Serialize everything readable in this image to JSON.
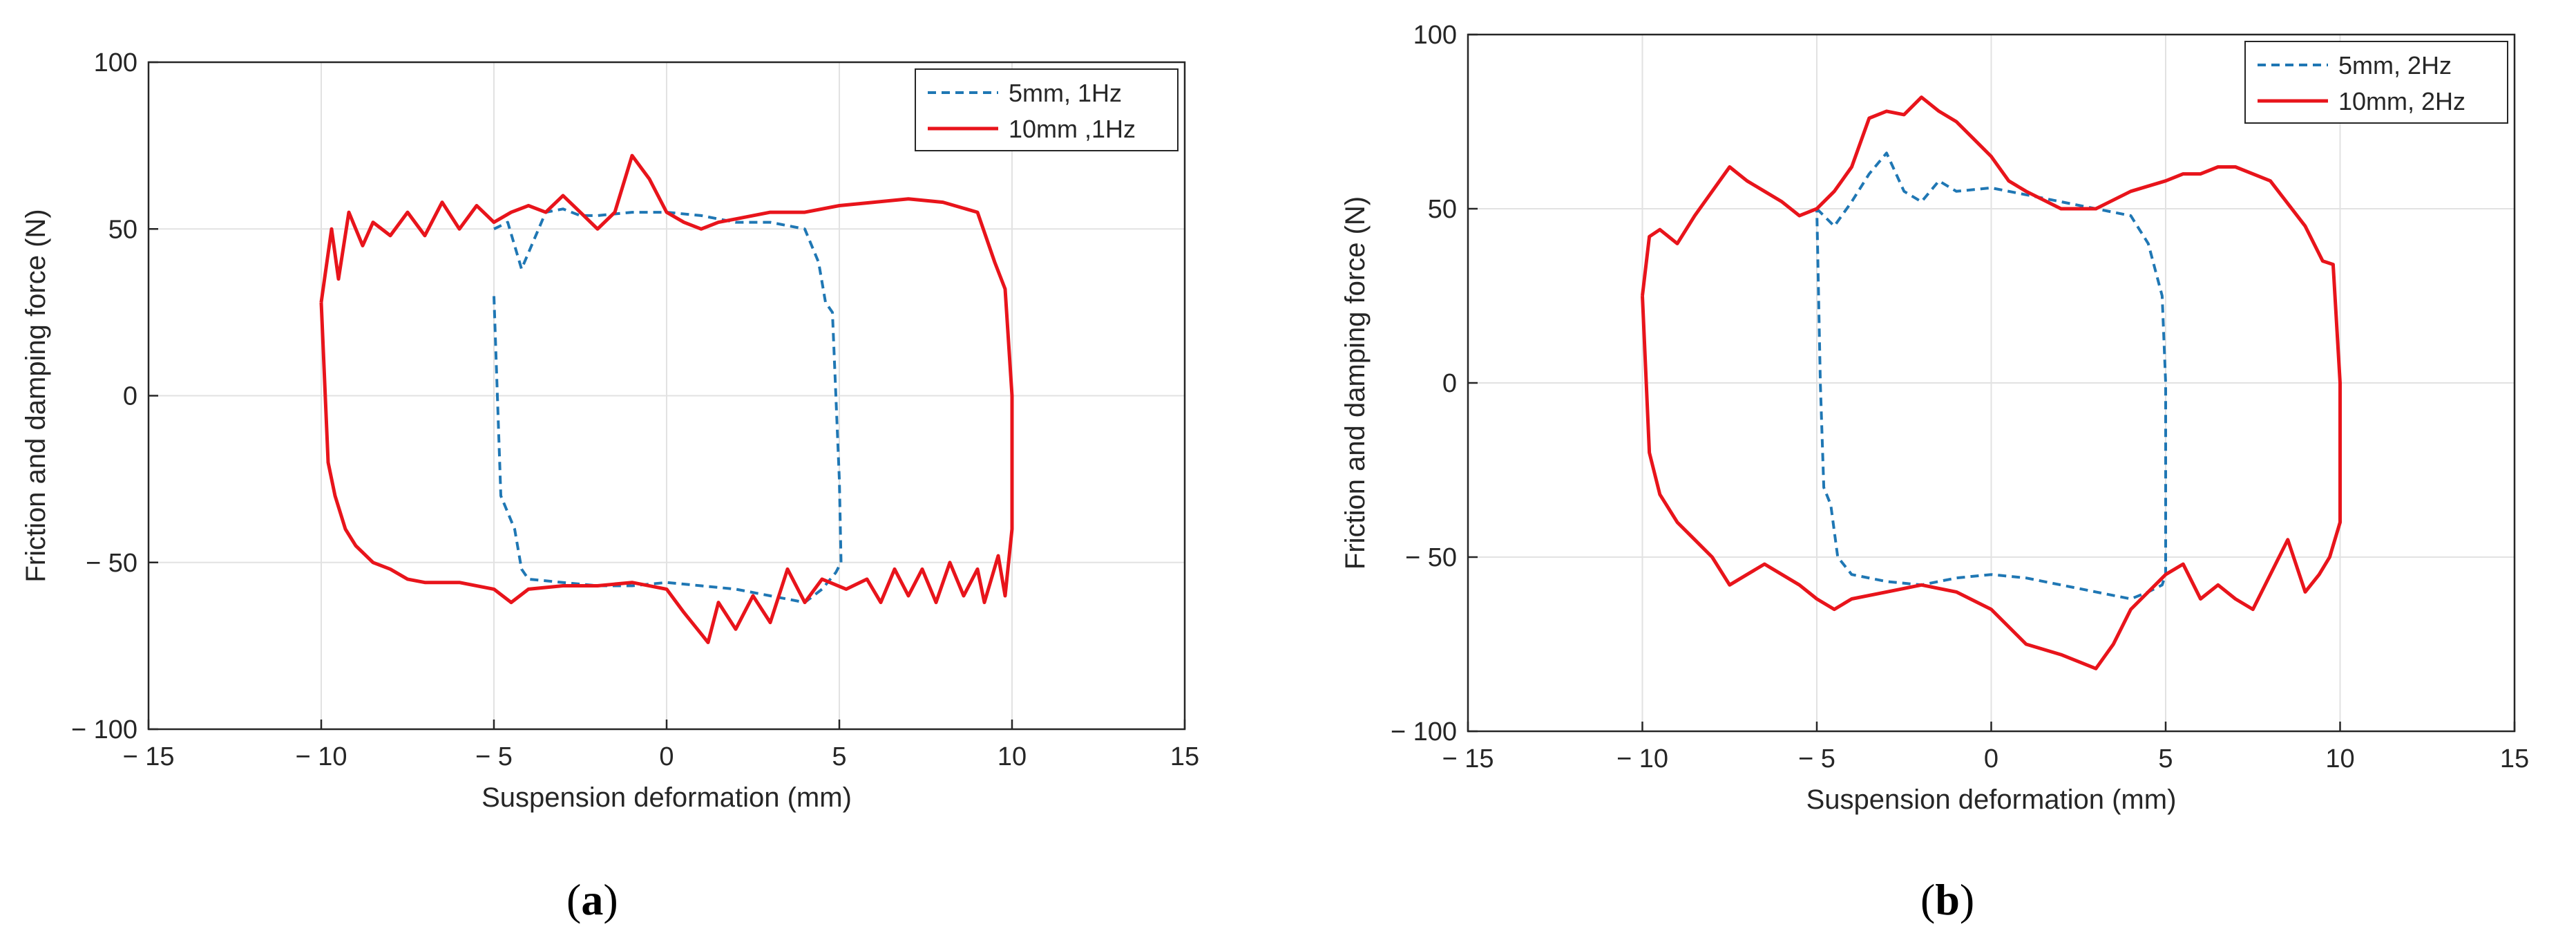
{
  "chart_data": [
    {
      "type": "line",
      "panel": "a",
      "caption": "(a)",
      "xlabel": "Suspension deformation (mm)",
      "ylabel": "Friction and damping force (N)",
      "xlim": [
        -15,
        15
      ],
      "ylim": [
        -100,
        100
      ],
      "xticks": [
        -15,
        -10,
        -5,
        0,
        5,
        10,
        15
      ],
      "yticks": [
        -100,
        -50,
        0,
        50,
        100
      ],
      "xtick_labels": [
        "− 15",
        "− 10",
        "− 5",
        "0",
        "5",
        "10",
        "15"
      ],
      "ytick_labels": [
        "− 100",
        "− 50",
        "0",
        "50",
        "100"
      ],
      "grid": true,
      "legend_position": "top-right",
      "series": [
        {
          "name": "5mm, 1Hz",
          "color": "#1f77b4",
          "style": "dashed",
          "x": [
            -5.0,
            -4.6,
            -4.2,
            -3.5,
            -3.0,
            -2.5,
            -2.0,
            -1.0,
            0.0,
            1.0,
            2.0,
            3.0,
            4.0,
            4.4,
            4.6,
            4.8,
            4.9,
            5.0,
            5.05,
            4.9,
            4.5,
            4.0,
            3.0,
            2.0,
            1.0,
            0.0,
            -1.0,
            -2.0,
            -3.0,
            -4.0,
            -4.2,
            -4.4,
            -4.6,
            -4.8,
            -4.9,
            -5.0
          ],
          "y": [
            50,
            52,
            38,
            55,
            56,
            54,
            54,
            55,
            55,
            54,
            52,
            52,
            50,
            40,
            28,
            25,
            0,
            -25,
            -50,
            -53,
            -58,
            -62,
            -60,
            -58,
            -57,
            -56,
            -57,
            -57,
            -56,
            -55,
            -52,
            -40,
            -35,
            -30,
            0,
            30
          ]
        },
        {
          "name": "10mm ,1Hz",
          "color": "#e8141b",
          "style": "solid",
          "x": [
            -10.0,
            -9.7,
            -9.5,
            -9.2,
            -8.8,
            -8.5,
            -8.0,
            -7.5,
            -7.0,
            -6.5,
            -6.0,
            -5.5,
            -5.0,
            -4.5,
            -4.0,
            -3.5,
            -3.0,
            -2.5,
            -2.0,
            -1.5,
            -1.0,
            -0.5,
            0.0,
            0.5,
            1.0,
            1.5,
            2.0,
            3.0,
            4.0,
            5.0,
            6.0,
            7.0,
            8.0,
            9.0,
            9.5,
            9.8,
            10.0,
            10.0,
            9.8,
            9.6,
            9.2,
            9.0,
            8.6,
            8.2,
            7.8,
            7.4,
            7.0,
            6.6,
            6.2,
            5.8,
            5.2,
            4.5,
            4.0,
            3.5,
            3.0,
            2.5,
            2.0,
            1.5,
            1.2,
            0.5,
            0.0,
            -1.0,
            -2.0,
            -3.0,
            -4.0,
            -4.5,
            -5.0,
            -6.0,
            -7.0,
            -7.5,
            -8.0,
            -8.5,
            -9.0,
            -9.3,
            -9.6,
            -9.8,
            -10.0
          ],
          "y": [
            28,
            50,
            35,
            55,
            45,
            52,
            48,
            55,
            48,
            58,
            50,
            57,
            52,
            55,
            57,
            55,
            60,
            55,
            50,
            55,
            72,
            65,
            55,
            52,
            50,
            52,
            53,
            55,
            55,
            57,
            58,
            59,
            58,
            55,
            40,
            32,
            0,
            -40,
            -60,
            -48,
            -62,
            -52,
            -60,
            -50,
            -62,
            -52,
            -60,
            -52,
            -62,
            -55,
            -58,
            -55,
            -62,
            -52,
            -68,
            -60,
            -70,
            -62,
            -74,
            -65,
            -58,
            -56,
            -57,
            -57,
            -58,
            -62,
            -58,
            -56,
            -56,
            -55,
            -52,
            -50,
            -45,
            -40,
            -30,
            -20,
            28
          ]
        }
      ]
    },
    {
      "type": "line",
      "panel": "b",
      "caption": "(b)",
      "xlabel": "Suspension deformation (mm)",
      "ylabel": "Friction and damping force (N)",
      "xlim": [
        -15,
        15
      ],
      "ylim": [
        -100,
        100
      ],
      "xticks": [
        -15,
        -10,
        -5,
        0,
        5,
        10,
        15
      ],
      "yticks": [
        -100,
        -50,
        0,
        50,
        100
      ],
      "xtick_labels": [
        "− 15",
        "− 10",
        "− 5",
        "0",
        "5",
        "10",
        "15"
      ],
      "ytick_labels": [
        "− 100",
        "− 50",
        "0",
        "50",
        "100"
      ],
      "grid": true,
      "legend_position": "top-right",
      "series": [
        {
          "name": "5mm, 2Hz",
          "color": "#1f77b4",
          "style": "dashed",
          "x": [
            -5.0,
            -4.5,
            -4.0,
            -3.5,
            -3.0,
            -2.5,
            -2.0,
            -1.5,
            -1.0,
            0.0,
            1.0,
            2.0,
            3.0,
            4.0,
            4.5,
            4.9,
            5.0,
            5.0,
            4.9,
            4.5,
            4.0,
            3.0,
            2.0,
            1.0,
            0.0,
            -1.0,
            -2.0,
            -3.0,
            -4.0,
            -4.4,
            -4.6,
            -4.8,
            -4.9,
            -5.0
          ],
          "y": [
            50,
            45,
            52,
            60,
            66,
            55,
            52,
            58,
            55,
            56,
            54,
            52,
            50,
            48,
            40,
            25,
            0,
            -55,
            -58,
            -60,
            -62,
            -60,
            -58,
            -56,
            -55,
            -56,
            -58,
            -57,
            -55,
            -50,
            -35,
            -30,
            0,
            50
          ]
        },
        {
          "name": "10mm, 2Hz",
          "color": "#e8141b",
          "style": "solid",
          "x": [
            -10.0,
            -9.8,
            -9.5,
            -9.0,
            -8.5,
            -8.0,
            -7.5,
            -7.0,
            -6.5,
            -6.0,
            -5.5,
            -5.0,
            -4.5,
            -4.0,
            -3.5,
            -3.0,
            -2.5,
            -2.0,
            -1.5,
            -1.0,
            -0.5,
            0.0,
            0.5,
            1.0,
            2.0,
            3.0,
            4.0,
            5.0,
            5.5,
            6.0,
            6.5,
            7.0,
            8.0,
            9.0,
            9.5,
            9.8,
            10.0,
            10.0,
            9.7,
            9.4,
            9.0,
            8.5,
            8.0,
            7.5,
            7.0,
            6.5,
            6.0,
            5.5,
            5.0,
            4.5,
            4.0,
            3.5,
            3.0,
            2.5,
            2.0,
            1.0,
            0.0,
            -1.0,
            -2.0,
            -3.0,
            -4.0,
            -4.5,
            -5.0,
            -5.5,
            -6.0,
            -6.5,
            -7.0,
            -7.5,
            -8.0,
            -8.5,
            -9.0,
            -9.5,
            -9.8,
            -10.0
          ],
          "y": [
            25,
            42,
            44,
            40,
            48,
            55,
            62,
            58,
            55,
            52,
            48,
            50,
            55,
            62,
            76,
            78,
            77,
            82,
            78,
            75,
            70,
            65,
            58,
            55,
            50,
            50,
            55,
            58,
            60,
            60,
            62,
            62,
            58,
            45,
            35,
            34,
            0,
            -40,
            -50,
            -55,
            -60,
            -45,
            -55,
            -65,
            -62,
            -58,
            -62,
            -52,
            -55,
            -60,
            -65,
            -75,
            -82,
            -80,
            -78,
            -75,
            -65,
            -60,
            -58,
            -60,
            -62,
            -65,
            -62,
            -58,
            -55,
            -52,
            -55,
            -58,
            -50,
            -45,
            -40,
            -32,
            -20,
            25
          ]
        }
      ]
    }
  ]
}
